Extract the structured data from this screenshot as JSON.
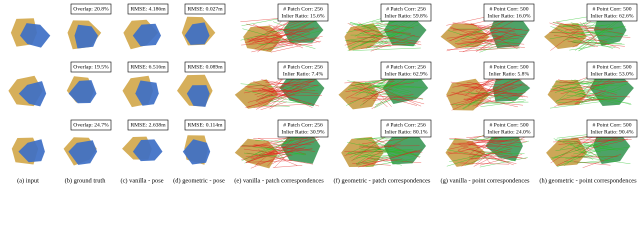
{
  "captions": [
    "(a) input",
    "(b) ground truth",
    "(c) vanilla - pose",
    "(d) geometric - pose",
    "(e) vanilla - patch correspondences",
    "(f) geometric - patch correspondences",
    "(g) vanilla - point correspondences",
    "(h) geometric - point correspondences"
  ],
  "rows": [
    {
      "labels": [
        [
          "Overlap: 20.8%"
        ],
        [
          "RMSE: 4.186m"
        ],
        [
          "RMSE: 0.027m"
        ],
        [
          "# Patch Corr: 256",
          "Inlier Ratio: 15.6%"
        ],
        [
          "# Patch Corr: 256",
          "Inlier Ratio: 59.8%"
        ],
        [
          "# Point Corr: 500",
          "Inlier Ratio: 16.0%"
        ],
        [
          "# Point Corr: 500",
          "Inlier Ratio: 62.6%"
        ]
      ]
    },
    {
      "labels": [
        [
          "Overlap: 19.5%"
        ],
        [
          "RMSE: 6.516m"
        ],
        [
          "RMSE: 0.089m"
        ],
        [
          "# Patch Corr: 256",
          "Inlier Ratio: 7.4%"
        ],
        [
          "# Patch Corr: 256",
          "Inlier Ratio: 62.9%"
        ],
        [
          "# Point Corr: 500",
          "Inlier Ratio: 5.8%"
        ],
        [
          "# Point Corr: 500",
          "Inlier Ratio: 53.0%"
        ]
      ]
    },
    {
      "labels": [
        [
          "Overlap: 24.7%"
        ],
        [
          "RMSE: 2.638m"
        ],
        [
          "RMSE: 0.114m"
        ],
        [
          "# Patch Corr: 256",
          "Inlier Ratio: 30.9%"
        ],
        [
          "# Patch Corr: 256",
          "Inlier Ratio: 80.1%"
        ],
        [
          "# Point Corr: 500",
          "Inlier Ratio: 24.0%"
        ],
        [
          "# Point Corr: 500",
          "Inlier Ratio: 90.4%"
        ]
      ]
    }
  ]
}
